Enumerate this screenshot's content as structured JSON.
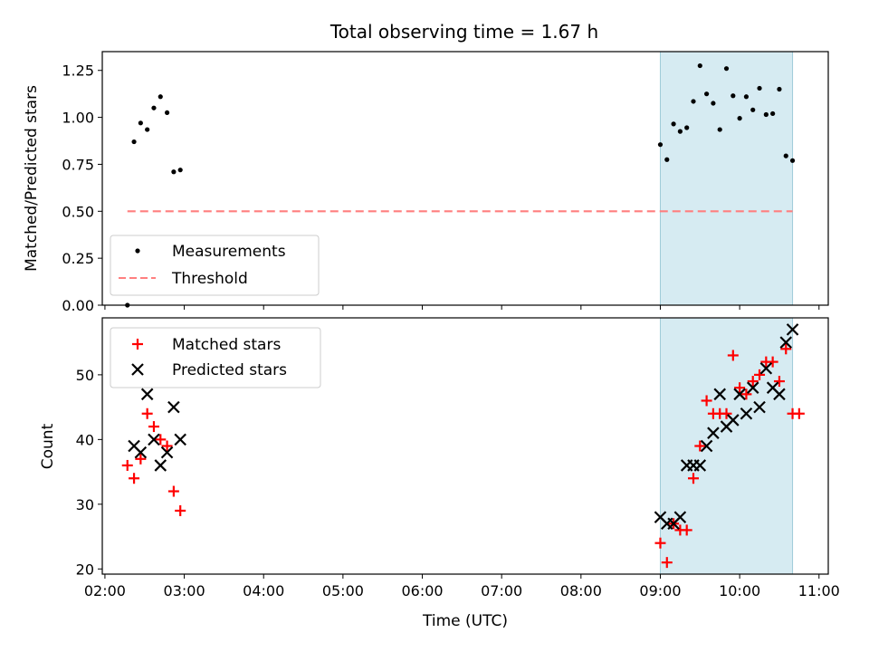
{
  "title": "Total observing time = 1.67 h",
  "xlabel": "Time (UTC)",
  "x_ticks": [
    "02:00",
    "03:00",
    "04:00",
    "05:00",
    "06:00",
    "07:00",
    "08:00",
    "09:00",
    "10:00",
    "11:00"
  ],
  "colors": {
    "measurement": "#000000",
    "threshold": "#ff7f7f",
    "matched": "#ff0000",
    "predicted": "#000000",
    "highlight": "#add8e6"
  },
  "chart_data": [
    {
      "type": "scatter",
      "ylabel": "Matched/Predicted stars",
      "xlim": [
        "01:58",
        "11:07"
      ],
      "ylim": [
        0,
        1.35
      ],
      "y_ticks": [
        "0.00",
        "0.25",
        "0.50",
        "0.75",
        "1.00",
        "1.25"
      ],
      "legend_position": "lower-left",
      "highlight_span": [
        "09:00",
        "10:40"
      ],
      "series": [
        {
          "name": "Measurements",
          "kind": "dot",
          "points": [
            [
              "02:17",
              0.0
            ],
            [
              "02:22",
              0.87
            ],
            [
              "02:27",
              0.97
            ],
            [
              "02:32",
              0.935
            ],
            [
              "02:37",
              1.05
            ],
            [
              "02:42",
              1.11
            ],
            [
              "02:47",
              1.025
            ],
            [
              "02:52",
              0.71
            ],
            [
              "02:57",
              0.72
            ],
            [
              "09:00",
              0.855
            ],
            [
              "09:05",
              0.775
            ],
            [
              "09:10",
              0.965
            ],
            [
              "09:15",
              0.925
            ],
            [
              "09:20",
              0.945
            ],
            [
              "09:25",
              1.085
            ],
            [
              "09:30",
              1.275
            ],
            [
              "09:35",
              1.125
            ],
            [
              "09:40",
              1.075
            ],
            [
              "09:45",
              0.935
            ],
            [
              "09:50",
              1.26
            ],
            [
              "09:55",
              1.115
            ],
            [
              "10:00",
              0.995
            ],
            [
              "10:05",
              1.11
            ],
            [
              "10:10",
              1.04
            ],
            [
              "10:15",
              1.155
            ],
            [
              "10:20",
              1.015
            ],
            [
              "10:25",
              1.02
            ],
            [
              "10:30",
              1.15
            ],
            [
              "10:35",
              0.795
            ],
            [
              "10:40",
              0.77
            ]
          ]
        },
        {
          "name": "Threshold",
          "kind": "dashed-line",
          "points": [
            [
              "02:17",
              0.5
            ],
            [
              "10:40",
              0.5
            ]
          ]
        }
      ]
    },
    {
      "type": "scatter",
      "ylabel": "Count",
      "xlim": [
        "01:58",
        "11:07"
      ],
      "ylim": [
        19.2,
        58.8
      ],
      "y_ticks": [
        "20",
        "30",
        "40",
        "50"
      ],
      "legend_position": "upper-left",
      "highlight_span": [
        "09:00",
        "10:40"
      ],
      "series": [
        {
          "name": "Matched stars",
          "kind": "plus",
          "points": [
            [
              "02:17",
              36
            ],
            [
              "02:22",
              34
            ],
            [
              "02:27",
              37
            ],
            [
              "02:32",
              44
            ],
            [
              "02:37",
              42
            ],
            [
              "02:42",
              40
            ],
            [
              "02:47",
              39
            ],
            [
              "02:52",
              32
            ],
            [
              "02:57",
              29
            ],
            [
              "09:00",
              24
            ],
            [
              "09:05",
              21
            ],
            [
              "09:10",
              27
            ],
            [
              "09:15",
              26
            ],
            [
              "09:20",
              26
            ],
            [
              "09:25",
              34
            ],
            [
              "09:30",
              39
            ],
            [
              "09:35",
              46
            ],
            [
              "09:40",
              44
            ],
            [
              "09:45",
              44
            ],
            [
              "09:50",
              44
            ],
            [
              "09:55",
              53
            ],
            [
              "10:00",
              48
            ],
            [
              "10:05",
              47
            ],
            [
              "10:10",
              49
            ],
            [
              "10:15",
              50
            ],
            [
              "10:20",
              52
            ],
            [
              "10:25",
              52
            ],
            [
              "10:30",
              49
            ],
            [
              "10:35",
              54
            ],
            [
              "10:40",
              44
            ],
            [
              "10:45",
              44
            ]
          ]
        },
        {
          "name": "Predicted stars",
          "kind": "x",
          "points": [
            [
              "02:22",
              39
            ],
            [
              "02:27",
              38
            ],
            [
              "02:32",
              47
            ],
            [
              "02:37",
              40
            ],
            [
              "02:42",
              36
            ],
            [
              "02:47",
              38
            ],
            [
              "02:52",
              45
            ],
            [
              "02:57",
              40
            ],
            [
              "09:00",
              28
            ],
            [
              "09:05",
              27
            ],
            [
              "09:10",
              27
            ],
            [
              "09:15",
              28
            ],
            [
              "09:20",
              36
            ],
            [
              "09:25",
              36
            ],
            [
              "09:30",
              36
            ],
            [
              "09:35",
              39
            ],
            [
              "09:40",
              41
            ],
            [
              "09:45",
              47
            ],
            [
              "09:50",
              42
            ],
            [
              "09:55",
              43
            ],
            [
              "10:00",
              47
            ],
            [
              "10:05",
              44
            ],
            [
              "10:10",
              48
            ],
            [
              "10:15",
              45
            ],
            [
              "10:20",
              51
            ],
            [
              "10:25",
              48
            ],
            [
              "10:30",
              47
            ],
            [
              "10:35",
              55
            ],
            [
              "10:40",
              57
            ]
          ]
        }
      ]
    }
  ]
}
